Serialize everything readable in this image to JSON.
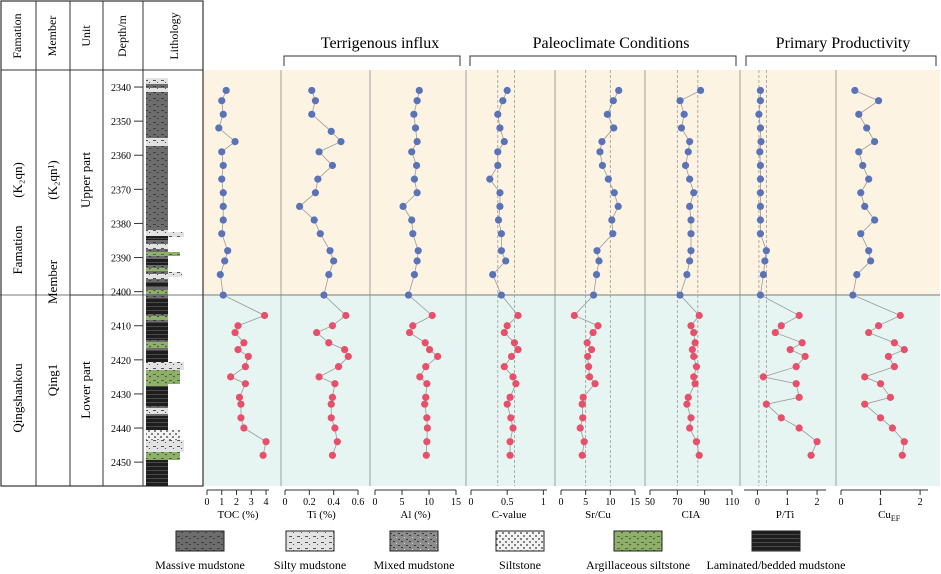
{
  "header": {
    "col_formation": "Famation",
    "col_member": "Member",
    "col_unit": "Unit",
    "col_depth": "Depth/m",
    "col_lithology": "Lithology"
  },
  "strat": {
    "formation_name": "Qingshankou",
    "formation_word": "Famation",
    "formation_code": "(K₂qn)",
    "member_name": "Qing1",
    "member_word": "Member",
    "member_code": "(K₂qn¹)",
    "unit_upper": "Upper part",
    "unit_lower": "Lower part"
  },
  "groups": [
    {
      "label": "Terrigenous influx"
    },
    {
      "label": "Paleoclimate Conditions"
    },
    {
      "label": "Primary Productivity"
    }
  ],
  "legend": [
    {
      "label": "Massive mudstone",
      "pattern": "massive"
    },
    {
      "label": "Silty mudstone",
      "pattern": "silty"
    },
    {
      "label": "Mixed mudstone",
      "pattern": "mixed"
    },
    {
      "label": "Siltstone",
      "pattern": "siltstone"
    },
    {
      "label": "Argillaceous siltstone",
      "pattern": "argillaceous"
    },
    {
      "label": "Laminated/bedded mudstone",
      "pattern": "laminated"
    }
  ],
  "colors": {
    "upper_bg": "#fdf3e3",
    "lower_bg": "#e6f4f2",
    "upper_point": "#5a73b8",
    "lower_point": "#e8506a",
    "line": "#9a9a9a",
    "frame": "#333333"
  },
  "chart_data": {
    "type": "scatter",
    "depth_axis": {
      "label": "Depth/m",
      "range": [
        2335,
        2457
      ],
      "ticks": [
        2340,
        2350,
        2360,
        2370,
        2380,
        2390,
        2400,
        2410,
        2420,
        2430,
        2440,
        2450
      ]
    },
    "boundary_depth": 2404,
    "series": [
      {
        "name": "TOC",
        "xlabel": "TOC (%)",
        "xlim": [
          0,
          4.2
        ],
        "ticks": [
          0,
          1,
          2,
          3,
          4
        ],
        "tick_labels": [
          "0",
          "1",
          "2",
          "3",
          "4"
        ],
        "refs": [],
        "upper": [
          [
            2341,
            1.3
          ],
          [
            2344,
            1.0
          ],
          [
            2348,
            1.1
          ],
          [
            2352,
            0.8
          ],
          [
            2356,
            1.9
          ],
          [
            2359,
            1.0
          ],
          [
            2363,
            1.1
          ],
          [
            2367,
            1.0
          ],
          [
            2371,
            1.1
          ],
          [
            2375,
            1.1
          ],
          [
            2379,
            1.1
          ],
          [
            2383,
            1.0
          ],
          [
            2388,
            1.4
          ],
          [
            2391,
            1.2
          ],
          [
            2395,
            0.9
          ],
          [
            2401,
            1.1
          ]
        ],
        "lower": [
          [
            2407,
            3.9
          ],
          [
            2410,
            2.1
          ],
          [
            2412,
            1.9
          ],
          [
            2415,
            2.5
          ],
          [
            2417,
            2.1
          ],
          [
            2419,
            2.8
          ],
          [
            2422,
            2.6
          ],
          [
            2425,
            1.6
          ],
          [
            2427,
            2.6
          ],
          [
            2431,
            2.2
          ],
          [
            2433,
            2.3
          ],
          [
            2437,
            2.3
          ],
          [
            2440,
            2.5
          ],
          [
            2444,
            4.0
          ],
          [
            2448,
            3.8
          ]
        ]
      },
      {
        "name": "Ti",
        "xlabel": "Ti (%)",
        "xlim": [
          0,
          0.6
        ],
        "ticks": [
          0,
          0.2,
          0.4,
          0.6
        ],
        "tick_labels": [
          "0",
          "0.2",
          "0.4",
          "0.6"
        ],
        "refs": [],
        "upper": [
          [
            2341,
            0.22
          ],
          [
            2344,
            0.25
          ],
          [
            2348,
            0.22
          ],
          [
            2353,
            0.38
          ],
          [
            2356,
            0.46
          ],
          [
            2359,
            0.28
          ],
          [
            2363,
            0.39
          ],
          [
            2367,
            0.27
          ],
          [
            2371,
            0.25
          ],
          [
            2375,
            0.12
          ],
          [
            2379,
            0.24
          ],
          [
            2383,
            0.29
          ],
          [
            2388,
            0.37
          ],
          [
            2391,
            0.4
          ],
          [
            2395,
            0.36
          ],
          [
            2401,
            0.32
          ]
        ],
        "lower": [
          [
            2407,
            0.5
          ],
          [
            2410,
            0.39
          ],
          [
            2412,
            0.26
          ],
          [
            2415,
            0.36
          ],
          [
            2417,
            0.49
          ],
          [
            2419,
            0.52
          ],
          [
            2422,
            0.44
          ],
          [
            2425,
            0.28
          ],
          [
            2427,
            0.41
          ],
          [
            2431,
            0.39
          ],
          [
            2433,
            0.38
          ],
          [
            2437,
            0.38
          ],
          [
            2440,
            0.41
          ],
          [
            2444,
            0.43
          ],
          [
            2448,
            0.39
          ]
        ]
      },
      {
        "name": "Al",
        "xlabel": "Al (%)",
        "xlim": [
          0,
          15
        ],
        "ticks": [
          0,
          5,
          10,
          15
        ],
        "tick_labels": [
          "0",
          "5",
          "10",
          "15"
        ],
        "refs": [],
        "upper": [
          [
            2341,
            8.2
          ],
          [
            2344,
            7.8
          ],
          [
            2348,
            7.2
          ],
          [
            2352,
            7.5
          ],
          [
            2356,
            7.8
          ],
          [
            2359,
            6.8
          ],
          [
            2363,
            7.7
          ],
          [
            2367,
            7.3
          ],
          [
            2371,
            7.8
          ],
          [
            2375,
            5.2
          ],
          [
            2379,
            6.8
          ],
          [
            2383,
            7.0
          ],
          [
            2388,
            8.0
          ],
          [
            2391,
            7.8
          ],
          [
            2395,
            7.3
          ],
          [
            2401,
            6.2
          ]
        ],
        "lower": [
          [
            2407,
            10.6
          ],
          [
            2410,
            7.0
          ],
          [
            2412,
            6.4
          ],
          [
            2415,
            9.3
          ],
          [
            2417,
            10.1
          ],
          [
            2419,
            11.6
          ],
          [
            2422,
            9.4
          ],
          [
            2425,
            8.3
          ],
          [
            2427,
            9.6
          ],
          [
            2431,
            9.4
          ],
          [
            2433,
            9.2
          ],
          [
            2437,
            9.6
          ],
          [
            2440,
            9.7
          ],
          [
            2444,
            9.6
          ],
          [
            2448,
            9.5
          ]
        ]
      },
      {
        "name": "C-value",
        "xlabel": "C-value",
        "xlim": [
          0,
          1.05
        ],
        "ticks": [
          0,
          0.5,
          1
        ],
        "tick_labels": [
          "0",
          "0.5",
          "1"
        ],
        "refs": [
          0.37,
          0.6
        ],
        "upper": [
          [
            2341,
            0.5
          ],
          [
            2344,
            0.44
          ],
          [
            2348,
            0.37
          ],
          [
            2352,
            0.4
          ],
          [
            2356,
            0.46
          ],
          [
            2359,
            0.37
          ],
          [
            2363,
            0.37
          ],
          [
            2367,
            0.26
          ],
          [
            2371,
            0.4
          ],
          [
            2375,
            0.4
          ],
          [
            2379,
            0.38
          ],
          [
            2383,
            0.42
          ],
          [
            2388,
            0.42
          ],
          [
            2391,
            0.48
          ],
          [
            2395,
            0.3
          ],
          [
            2401,
            0.42
          ]
        ],
        "lower": [
          [
            2407,
            0.65
          ],
          [
            2410,
            0.5
          ],
          [
            2412,
            0.46
          ],
          [
            2415,
            0.6
          ],
          [
            2417,
            0.65
          ],
          [
            2419,
            0.56
          ],
          [
            2422,
            0.46
          ],
          [
            2425,
            0.58
          ],
          [
            2427,
            0.62
          ],
          [
            2431,
            0.54
          ],
          [
            2433,
            0.5
          ],
          [
            2437,
            0.55
          ],
          [
            2440,
            0.58
          ],
          [
            2444,
            0.54
          ],
          [
            2448,
            0.54
          ]
        ]
      },
      {
        "name": "Sr/Cu",
        "xlabel": "Sr/Cu",
        "xlim": [
          0,
          15
        ],
        "ticks": [
          0,
          5,
          10,
          15
        ],
        "tick_labels": [
          "0",
          "5",
          "10",
          "15"
        ],
        "refs": [
          5,
          10
        ],
        "upper": [
          [
            2341,
            11.7
          ],
          [
            2344,
            10.6
          ],
          [
            2348,
            9.4
          ],
          [
            2352,
            10.7
          ],
          [
            2356,
            8.3
          ],
          [
            2359,
            7.9
          ],
          [
            2363,
            8.4
          ],
          [
            2367,
            9.6
          ],
          [
            2371,
            10.8
          ],
          [
            2375,
            11.6
          ],
          [
            2379,
            10.3
          ],
          [
            2383,
            10.5
          ],
          [
            2388,
            7.3
          ],
          [
            2391,
            7.7
          ],
          [
            2395,
            7.2
          ],
          [
            2401,
            6.6
          ]
        ],
        "lower": [
          [
            2407,
            2.7
          ],
          [
            2410,
            7.5
          ],
          [
            2412,
            6.5
          ],
          [
            2415,
            5.3
          ],
          [
            2417,
            6.2
          ],
          [
            2419,
            5.4
          ],
          [
            2422,
            5.6
          ],
          [
            2425,
            5.8
          ],
          [
            2427,
            6.9
          ],
          [
            2431,
            4.5
          ],
          [
            2433,
            4.3
          ],
          [
            2437,
            4.4
          ],
          [
            2440,
            3.9
          ],
          [
            2444,
            4.7
          ],
          [
            2448,
            4.3
          ]
        ]
      },
      {
        "name": "CIA",
        "xlabel": "CIA",
        "xlim": [
          50,
          110
        ],
        "ticks": [
          50,
          70,
          90,
          110
        ],
        "tick_labels": [
          "50",
          "70",
          "90",
          "110"
        ],
        "refs": [
          70,
          85
        ],
        "upper": [
          [
            2341,
            87
          ],
          [
            2344,
            72
          ],
          [
            2348,
            75
          ],
          [
            2352,
            73
          ],
          [
            2356,
            79
          ],
          [
            2359,
            78
          ],
          [
            2363,
            76
          ],
          [
            2367,
            79
          ],
          [
            2371,
            82
          ],
          [
            2375,
            79
          ],
          [
            2379,
            80
          ],
          [
            2383,
            80
          ],
          [
            2388,
            80
          ],
          [
            2391,
            79
          ],
          [
            2395,
            77
          ],
          [
            2401,
            72
          ]
        ],
        "lower": [
          [
            2407,
            86
          ],
          [
            2410,
            80
          ],
          [
            2412,
            82
          ],
          [
            2415,
            83
          ],
          [
            2417,
            81
          ],
          [
            2419,
            82
          ],
          [
            2422,
            84
          ],
          [
            2425,
            82
          ],
          [
            2427,
            83
          ],
          [
            2431,
            78
          ],
          [
            2433,
            77
          ],
          [
            2437,
            80
          ],
          [
            2440,
            79
          ],
          [
            2444,
            84
          ],
          [
            2448,
            86
          ]
        ]
      },
      {
        "name": "P/Ti",
        "xlabel": "P/Ti",
        "xlim": [
          -0.45,
          2.3
        ],
        "ticks": [
          0,
          1,
          2
        ],
        "tick_labels": [
          "0",
          "1",
          "2"
        ],
        "refs": [
          0.05,
          0.3
        ],
        "upper": [
          [
            2341,
            0.1
          ],
          [
            2344,
            0.1
          ],
          [
            2348,
            0.05
          ],
          [
            2352,
            0.1
          ],
          [
            2356,
            0.12
          ],
          [
            2359,
            0.08
          ],
          [
            2363,
            0.1
          ],
          [
            2367,
            0.1
          ],
          [
            2371,
            0.1
          ],
          [
            2375,
            0.1
          ],
          [
            2379,
            0.1
          ],
          [
            2383,
            0.1
          ],
          [
            2388,
            0.3
          ],
          [
            2391,
            0.25
          ],
          [
            2395,
            0.2
          ],
          [
            2401,
            0.1
          ]
        ],
        "lower": [
          [
            2407,
            1.4
          ],
          [
            2410,
            0.8
          ],
          [
            2412,
            0.6
          ],
          [
            2415,
            1.5
          ],
          [
            2417,
            1.1
          ],
          [
            2419,
            1.6
          ],
          [
            2422,
            1.3
          ],
          [
            2425,
            0.2
          ],
          [
            2427,
            1.3
          ],
          [
            2431,
            1.4
          ],
          [
            2433,
            0.3
          ],
          [
            2437,
            0.8
          ],
          [
            2440,
            1.4
          ],
          [
            2444,
            2.0
          ],
          [
            2448,
            1.8
          ]
        ]
      },
      {
        "name": "CuEF",
        "xlabel": "Cu",
        "xlabel_sub": "EF",
        "xlim": [
          0,
          2.2
        ],
        "ticks": [
          0,
          1,
          2
        ],
        "tick_labels": [
          "0",
          "1",
          "2"
        ],
        "refs": [],
        "upper": [
          [
            2341,
            0.35
          ],
          [
            2344,
            0.95
          ],
          [
            2348,
            0.45
          ],
          [
            2352,
            0.65
          ],
          [
            2356,
            0.85
          ],
          [
            2359,
            0.45
          ],
          [
            2363,
            0.55
          ],
          [
            2367,
            0.7
          ],
          [
            2371,
            0.5
          ],
          [
            2375,
            0.6
          ],
          [
            2379,
            0.85
          ],
          [
            2383,
            0.5
          ],
          [
            2388,
            0.7
          ],
          [
            2391,
            0.75
          ],
          [
            2395,
            0.4
          ],
          [
            2401,
            0.3
          ]
        ],
        "lower": [
          [
            2407,
            1.5
          ],
          [
            2410,
            0.95
          ],
          [
            2412,
            0.7
          ],
          [
            2415,
            1.35
          ],
          [
            2417,
            1.6
          ],
          [
            2419,
            1.2
          ],
          [
            2422,
            1.35
          ],
          [
            2425,
            0.6
          ],
          [
            2427,
            1.0
          ],
          [
            2431,
            1.25
          ],
          [
            2433,
            0.6
          ],
          [
            2437,
            1.0
          ],
          [
            2440,
            1.3
          ],
          [
            2444,
            1.6
          ],
          [
            2448,
            1.55
          ]
        ]
      }
    ]
  }
}
